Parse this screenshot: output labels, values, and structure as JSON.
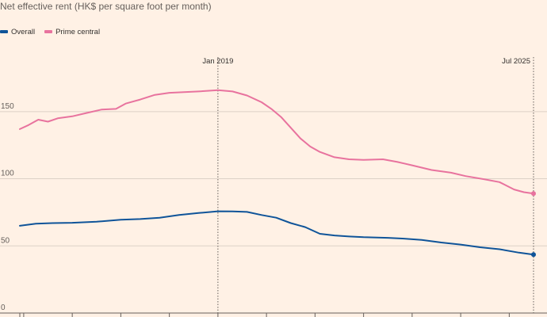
{
  "chart_data": {
    "type": "line",
    "subtitle": "Net effective rent (HK$ per square foot per month)",
    "ylim": [
      0,
      180
    ],
    "y_ticks": [
      0,
      50,
      100,
      150
    ],
    "grid": true,
    "legend_position": "top-left",
    "annotations": [
      {
        "label": "Jan 2019",
        "x": 2019.0
      },
      {
        "label": "Jul 2025",
        "x": 2025.5
      }
    ],
    "xlim": [
      2014.92,
      2025.5
    ],
    "series": [
      {
        "name": "Overall",
        "color": "#0F5499",
        "points": [
          [
            2014.92,
            65
          ],
          [
            2015.25,
            66.5
          ],
          [
            2015.6,
            67
          ],
          [
            2016.0,
            67.2
          ],
          [
            2016.5,
            68
          ],
          [
            2017.0,
            69.5
          ],
          [
            2017.4,
            70
          ],
          [
            2017.8,
            71
          ],
          [
            2018.2,
            73
          ],
          [
            2018.6,
            74.5
          ],
          [
            2019.0,
            75.8
          ],
          [
            2019.3,
            75.7
          ],
          [
            2019.6,
            75.3
          ],
          [
            2019.9,
            73
          ],
          [
            2020.2,
            71
          ],
          [
            2020.5,
            67
          ],
          [
            2020.8,
            64
          ],
          [
            2021.1,
            59
          ],
          [
            2021.4,
            57.8
          ],
          [
            2021.7,
            57
          ],
          [
            2022.0,
            56.5
          ],
          [
            2022.5,
            56
          ],
          [
            2022.8,
            55.5
          ],
          [
            2023.2,
            54.5
          ],
          [
            2023.6,
            52.5
          ],
          [
            2024.0,
            51
          ],
          [
            2024.4,
            49
          ],
          [
            2024.8,
            47.5
          ],
          [
            2025.2,
            45
          ],
          [
            2025.5,
            43.5
          ]
        ]
      },
      {
        "name": "Prime central",
        "color": "#E8739E",
        "points": [
          [
            2014.92,
            137
          ],
          [
            2015.1,
            140
          ],
          [
            2015.3,
            144
          ],
          [
            2015.5,
            142.5
          ],
          [
            2015.7,
            145
          ],
          [
            2016.0,
            146.5
          ],
          [
            2016.3,
            149
          ],
          [
            2016.6,
            151.5
          ],
          [
            2016.9,
            152
          ],
          [
            2017.1,
            156
          ],
          [
            2017.4,
            159
          ],
          [
            2017.7,
            162.5
          ],
          [
            2018.0,
            164
          ],
          [
            2018.3,
            164.5
          ],
          [
            2018.6,
            165
          ],
          [
            2019.0,
            166
          ],
          [
            2019.3,
            165
          ],
          [
            2019.6,
            162
          ],
          [
            2019.9,
            157
          ],
          [
            2020.1,
            152
          ],
          [
            2020.3,
            146
          ],
          [
            2020.5,
            138
          ],
          [
            2020.7,
            130
          ],
          [
            2020.9,
            124
          ],
          [
            2021.1,
            120
          ],
          [
            2021.4,
            116
          ],
          [
            2021.7,
            114.5
          ],
          [
            2022.0,
            114
          ],
          [
            2022.4,
            114.5
          ],
          [
            2022.7,
            112.5
          ],
          [
            2023.0,
            110
          ],
          [
            2023.4,
            106.5
          ],
          [
            2023.8,
            104.5
          ],
          [
            2024.1,
            102
          ],
          [
            2024.5,
            99.5
          ],
          [
            2024.8,
            97.5
          ],
          [
            2025.1,
            92
          ],
          [
            2025.3,
            90
          ],
          [
            2025.5,
            89
          ]
        ]
      }
    ]
  }
}
